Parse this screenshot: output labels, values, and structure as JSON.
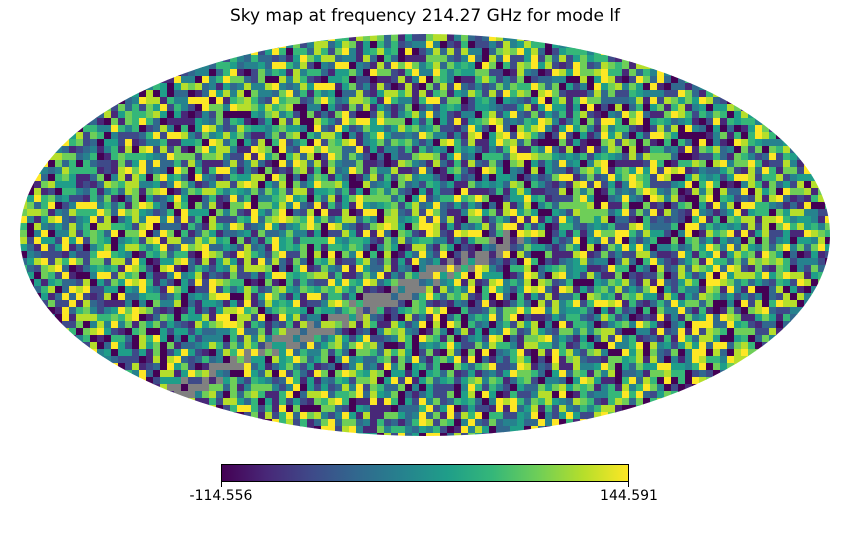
{
  "chart_data": {
    "type": "heatmap",
    "projection": "mollweide",
    "title": "Sky map at frequency 214.27 GHz for mode lf",
    "colormap": "viridis",
    "colorbar": {
      "min": -114.556,
      "max": 144.591,
      "min_label": "-114.556",
      "max_label": "144.591",
      "orientation": "horizontal",
      "position": "bottom"
    },
    "masked_color": "#808080",
    "grid": false
  }
}
